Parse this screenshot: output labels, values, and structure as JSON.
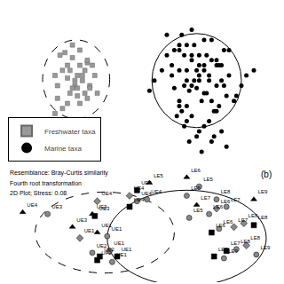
{
  "chart_data": [
    {
      "type": "scatter",
      "xlim": [
        -5.5,
        5.5
      ],
      "ylim": [
        -3.2,
        3.2
      ],
      "tick_labels": false,
      "grid": false,
      "legend": "lower left",
      "series": [
        {
          "name": "Freshwater taxa",
          "color": "#999999",
          "marker": "square",
          "x": [
            -3.2,
            -2.8,
            -2.5,
            -3.0,
            -2.6,
            -2.2,
            -3.4,
            -2.9,
            -2.4,
            -2.0,
            -3.1,
            -2.7,
            -2.3,
            -3.3,
            -2.8,
            -2.4,
            -2.1,
            -3.0,
            -2.6,
            -2.2,
            -3.5,
            -2.9,
            -2.5,
            -2.1,
            -3.2,
            -2.7,
            -2.3,
            -1.9,
            -3.4,
            -2.6,
            -2.2,
            -3.0,
            -2.5,
            -2.8,
            -1.8,
            -3.5
          ],
          "values": [
            0.5,
            1.0,
            0.7,
            0.2,
            0.3,
            0.8,
            -0.1,
            0.5,
            0.1,
            0.7,
            1.2,
            -0.1,
            0.5,
            1.1,
            -0.2,
            0.3,
            -0.1,
            0.7,
            -0.5,
            0.9,
            0.3,
            -0.4,
            -0.8,
            -0.2,
            -1.0,
            0.1,
            -0.4,
            0.3,
            -0.6,
            -0.2,
            -0.6,
            -0.8,
            1.3,
            1.5,
            -0.4,
            -1.2
          ]
        },
        {
          "name": "Marine taxa",
          "color": "black",
          "marker": "circle",
          "x": [
            1.5,
            2.0,
            2.5,
            1.8,
            2.3,
            2.8,
            1.3,
            1.8,
            2.3,
            3.0,
            1.5,
            2.0,
            2.5,
            3.2,
            1.7,
            2.2,
            2.7,
            1.5,
            2.0,
            2.5,
            3.0,
            1.8,
            2.3,
            2.8,
            3.3,
            1.6,
            2.1,
            2.6,
            3.1,
            3.5,
            1.4,
            1.9,
            2.4,
            2.9,
            3.4,
            1.2,
            1.7,
            2.2,
            2.7,
            3.2,
            3.7,
            1.5,
            2.0,
            2.5,
            3.0,
            4.0,
            3.8,
            1.0,
            1.3,
            0.8,
            0.5,
            4.2,
            0.3,
            4.5,
            1.8,
            2.3,
            2.8,
            3.3,
            1.0,
            1.5,
            2.0,
            2.5,
            3.0,
            3.5,
            1.8,
            2.3,
            2.8,
            1.2,
            1.7,
            2.2,
            2.7,
            3.2,
            1.9,
            2.4,
            2.9,
            3.4,
            1.6,
            2.1,
            2.6,
            3.1
          ],
          "values": [
            0.5,
            1.1,
            0.7,
            0.1,
            0.3,
            0.9,
            -0.2,
            0.5,
            0.1,
            0.7,
            1.3,
            -0.1,
            0.5,
            0.1,
            1.1,
            -0.2,
            0.3,
            -0.7,
            0.9,
            -0.4,
            -0.1,
            -0.9,
            0.7,
            -0.7,
            -0.1,
            -1.1,
            0.1,
            -0.4,
            -0.9,
            0.3,
            -1.3,
            -0.3,
            -0.7,
            -1.1,
            -0.5,
            0.3,
            -0.1,
            0.5,
            0.1,
            0.7,
            -0.7,
            -0.9,
            -1.3,
            -1.7,
            -1.1,
            -0.1,
            -0.5,
            1.1,
            1.3,
            0.5,
            0.1,
            0.3,
            -0.3,
            0.5,
            1.5,
            1.1,
            1.7,
            1.3,
            1.9,
            1.5,
            2.1,
            1.7,
            0.9,
            1.3,
            -1.5,
            -1.9,
            -2.3,
            0.7,
            -1.7,
            -2.1,
            -1.5,
            -1.9,
            -2.3,
            -2.7,
            -2.1,
            -2.5,
            1.9,
            1.5,
            1.1,
            0.7
          ]
        }
      ],
      "ellipses": [
        {
          "cx": -2.65,
          "cy": 0.15,
          "rx": 1.35,
          "ry": 1.55,
          "line_style": "dashed"
        },
        {
          "cx": 2.2,
          "cy": 0.1,
          "rx": 1.8,
          "ry": 1.85,
          "line_style": "solid"
        }
      ]
    },
    {
      "type": "scatter",
      "xlim": [
        -5.5,
        5.5
      ],
      "ylim": [
        -3.2,
        3.2
      ],
      "tick_labels": false,
      "grid": false,
      "annotations": [
        "Resemblance: Bray-Curtis similarity",
        "Fourth root transformation",
        "2D Plot; Stress: 0.08"
      ],
      "panel_label": "(b)",
      "ellipses": [
        {
          "cx": -1.5,
          "cy": -0.5,
          "rx": 2.8,
          "ry": 2.2,
          "line_style": "dashed"
        },
        {
          "cx": 1.8,
          "cy": -0.8,
          "rx": 3.2,
          "ry": 2.6,
          "line_style": "solid"
        }
      ],
      "points": [
        {
          "label": "UE4",
          "x": -4.8,
          "y": 0.6,
          "marker": "triangle",
          "color": "black"
        },
        {
          "label": "UE3",
          "x": -3.8,
          "y": 0.5,
          "marker": "circle",
          "color": "#888888"
        },
        {
          "label": "UE3",
          "x": -2.8,
          "y": -0.2,
          "marker": "triangle",
          "color": "black"
        },
        {
          "label": "UE3",
          "x": -2.0,
          "y": 0.5,
          "marker": "triangle",
          "color": "black"
        },
        {
          "label": "UE4",
          "x": -1.8,
          "y": 1.2,
          "marker": "diamond",
          "color": "#888888"
        },
        {
          "label": "UE3",
          "x": -1.9,
          "y": 0.4,
          "marker": "square",
          "color": "black"
        },
        {
          "label": "UE1",
          "x": -2.5,
          "y": -0.8,
          "marker": "diamond",
          "color": "#888888"
        },
        {
          "label": "UE1",
          "x": -1.8,
          "y": -0.5,
          "marker": "triangle",
          "color": "black"
        },
        {
          "label": "UE1",
          "x": -1.4,
          "y": -0.7,
          "marker": "circle",
          "color": "#888888"
        },
        {
          "label": "UE4",
          "x": -0.5,
          "y": 1.5,
          "marker": "diamond",
          "color": "#888888"
        },
        {
          "label": "UE4",
          "x": -0.5,
          "y": 0.9,
          "marker": "square",
          "color": "black"
        },
        {
          "label": "UE4",
          "x": -0.2,
          "y": 1.2,
          "marker": "circle",
          "color": "#888888"
        },
        {
          "label": "UE2",
          "x": -2.0,
          "y": -1.6,
          "marker": "circle",
          "color": "#888888"
        },
        {
          "label": "UE2",
          "x": -1.7,
          "y": -1.8,
          "marker": "square",
          "color": "black"
        },
        {
          "label": "UE1",
          "x": -1.3,
          "y": -1.5,
          "marker": "circle",
          "color": "#888888"
        },
        {
          "label": "UE1",
          "x": -1.0,
          "y": -1.8,
          "marker": "square",
          "color": "black"
        },
        {
          "label": "UF2",
          "x": -1.8,
          "y": -2.0,
          "marker": "square",
          "color": "black"
        },
        {
          "label": "UE1",
          "x": -1.2,
          "y": -2.1,
          "marker": "circle",
          "color": "#888888"
        },
        {
          "label": "LE5",
          "x": 0.3,
          "y": 2.2,
          "marker": "triangle",
          "color": "black"
        },
        {
          "label": "LE6",
          "x": 1.8,
          "y": 2.5,
          "marker": "triangle",
          "color": "black"
        },
        {
          "label": "UE4",
          "x": -0.2,
          "y": 1.8,
          "marker": "square",
          "color": "black"
        },
        {
          "label": "UE4",
          "x": 0.2,
          "y": 1.3,
          "marker": "circle",
          "color": "#888888"
        },
        {
          "label": "LE5",
          "x": 1.8,
          "y": 1.5,
          "marker": "circle",
          "color": "#888888"
        },
        {
          "label": "LE5",
          "x": 2.3,
          "y": 2.0,
          "marker": "circle",
          "color": "#888888"
        },
        {
          "label": "LE7",
          "x": 2.2,
          "y": 1.0,
          "marker": "triangle",
          "color": "black"
        },
        {
          "label": "LE8",
          "x": 3.0,
          "y": 1.3,
          "marker": "circle",
          "color": "#888888"
        },
        {
          "label": "LE9",
          "x": 4.5,
          "y": 1.3,
          "marker": "triangle",
          "color": "black"
        },
        {
          "label": "LE5",
          "x": 1.9,
          "y": 0.3,
          "marker": "circle",
          "color": "#888888"
        },
        {
          "label": "LE6",
          "x": 2.7,
          "y": 0.5,
          "marker": "circle",
          "color": "#888888"
        },
        {
          "label": "LE6",
          "x": 3.0,
          "y": 0.8,
          "marker": "diamond",
          "color": "#888888"
        },
        {
          "label": "LE7",
          "x": 3.4,
          "y": 0.9,
          "marker": "circle",
          "color": "#888888"
        },
        {
          "label": "LE6",
          "x": 2.8,
          "y": -0.5,
          "marker": "square",
          "color": "black"
        },
        {
          "label": "LE6",
          "x": 3.1,
          "y": -0.3,
          "marker": "circle",
          "color": "#888888"
        },
        {
          "label": "LE7",
          "x": 3.7,
          "y": -0.2,
          "marker": "diamond",
          "color": "#888888"
        },
        {
          "label": "LE8",
          "x": 4.1,
          "y": 0.0,
          "marker": "diamond",
          "color": "#888888"
        },
        {
          "label": "LE8",
          "x": 4.5,
          "y": -0.1,
          "marker": "square",
          "color": "black"
        },
        {
          "label": "LE8",
          "x": 4.2,
          "y": -1.2,
          "marker": "diamond",
          "color": "#888888"
        },
        {
          "label": "LE8",
          "x": 3.8,
          "y": -1.4,
          "marker": "circle",
          "color": "#888888"
        },
        {
          "label": "LE7",
          "x": 3.4,
          "y": -1.5,
          "marker": "square",
          "color": "black"
        },
        {
          "label": "LE9",
          "x": 2.9,
          "y": -1.8,
          "marker": "square",
          "color": "black"
        },
        {
          "label": "LE9",
          "x": 3.3,
          "y": -1.9,
          "marker": "circle",
          "color": "#888888"
        },
        {
          "label": "LE9",
          "x": 4.6,
          "y": -1.7,
          "marker": "circle",
          "color": "#888888"
        }
      ]
    }
  ]
}
